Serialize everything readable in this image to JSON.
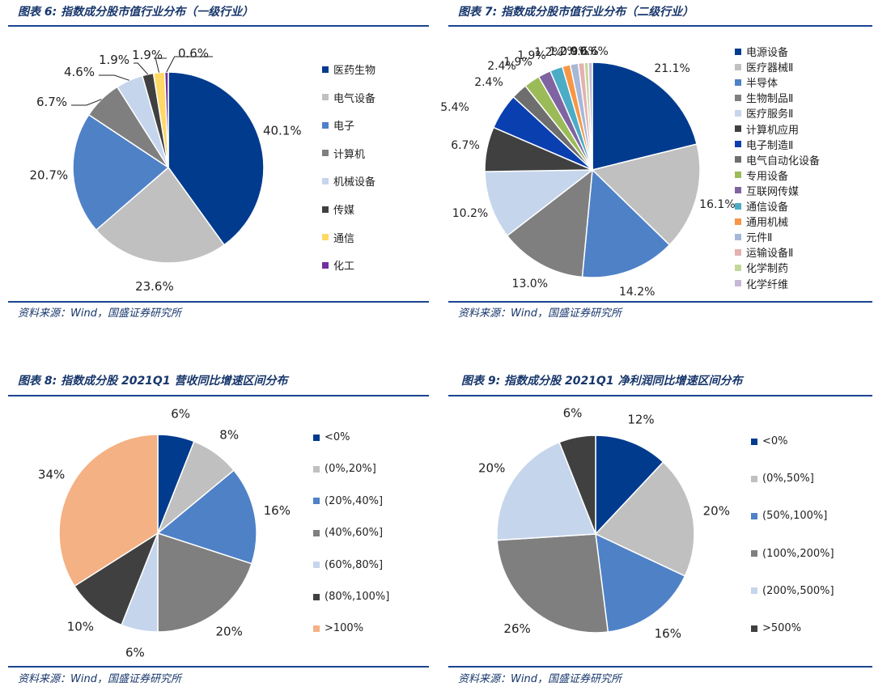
{
  "source_text": "资料来源：Wind，国盛证券研究所",
  "chart_data": [
    {
      "type": "pie",
      "title": "图表 6:  指数成分股市值行业分布（一级行业）",
      "categories": [
        "医药生物",
        "电气设备",
        "电子",
        "计算机",
        "机械设备",
        "传媒",
        "通信",
        "化工"
      ],
      "values": [
        40.1,
        23.6,
        20.7,
        6.7,
        4.6,
        1.9,
        1.9,
        0.6
      ],
      "labels": [
        "40.1%",
        "23.6%",
        "20.7%",
        "6.7%",
        "4.6%",
        "1.9%",
        "1.9%",
        "0.6%"
      ],
      "colors": [
        "#003b8e",
        "#c0c0c0",
        "#4f81c7",
        "#7f7f7f",
        "#c5d5ec",
        "#404040",
        "#ffd966",
        "#7030a0"
      ],
      "legend_position": "right"
    },
    {
      "type": "pie",
      "title": "图表 7:  指数成分股市值行业分布（二级行业）",
      "categories": [
        "电源设备",
        "医疗器械Ⅱ",
        "半导体",
        "生物制品Ⅱ",
        "医疗服务Ⅱ",
        "计算机应用",
        "电子制造Ⅱ",
        "电气自动化设备",
        "专用设备",
        "互联网传媒",
        "通信设备",
        "通用机械",
        "元件Ⅱ",
        "运输设备Ⅱ",
        "化学制药",
        "化学纤维"
      ],
      "values": [
        21.1,
        16.1,
        14.2,
        13.0,
        10.2,
        6.7,
        5.4,
        2.4,
        2.4,
        1.9,
        1.9,
        1.2,
        1.2,
        0.9,
        0.6,
        0.6
      ],
      "labels": [
        "21.1%",
        "16.1%",
        "14.2%",
        "13.0%",
        "10.2%",
        "6.7%",
        "5.4%",
        "2.4%",
        "2.4%",
        "1.9%",
        "1.9%",
        "1.2%",
        "1.2%",
        "0.9%",
        "0.6%",
        "0.6%"
      ],
      "colors": [
        "#003b8e",
        "#c0c0c0",
        "#4f81c7",
        "#7f7f7f",
        "#c5d5ec",
        "#404040",
        "#0a3fb0",
        "#6e6e6e",
        "#9bbb59",
        "#8064a2",
        "#4bacc6",
        "#f79646",
        "#a6b8d8",
        "#e6b0b0",
        "#c4d79b",
        "#c6b8d6"
      ],
      "legend_position": "right"
    },
    {
      "type": "pie",
      "title": "图表 8:  指数成分股 2021Q1 营收同比增速区间分布",
      "categories": [
        "<0%",
        "(0%,20%]",
        "(20%,40%]",
        "(40%,60%]",
        "(60%,80%]",
        "(80%,100%]",
        ">100%"
      ],
      "values": [
        6,
        8,
        16,
        20,
        6,
        10,
        34
      ],
      "labels": [
        "6%",
        "8%",
        "16%",
        "20%",
        "6%",
        "10%",
        "34%"
      ],
      "colors": [
        "#003b8e",
        "#c0c0c0",
        "#4f81c7",
        "#7f7f7f",
        "#c5d5ec",
        "#404040",
        "#f4b183"
      ],
      "legend_position": "right"
    },
    {
      "type": "pie",
      "title": "图表 9:  指数成分股 2021Q1 净利润同比增速区间分布",
      "categories": [
        "<0%",
        "(0%,50%]",
        "(50%,100%]",
        "(100%,200%]",
        "(200%,500%]",
        ">500%"
      ],
      "values": [
        12,
        20,
        16,
        26,
        20,
        6
      ],
      "labels": [
        "12%",
        "20%",
        "16%",
        "26%",
        "20%",
        "6%"
      ],
      "colors": [
        "#003b8e",
        "#c0c0c0",
        "#4f81c7",
        "#7f7f7f",
        "#c5d5ec",
        "#404040"
      ],
      "legend_position": "right"
    }
  ]
}
